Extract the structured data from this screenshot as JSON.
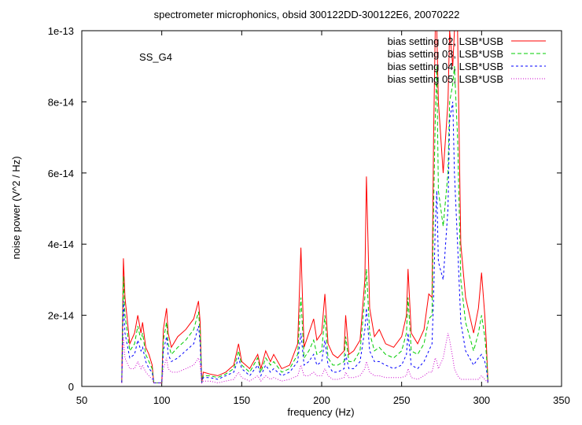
{
  "chart_data": {
    "type": "line",
    "title": "spectrometer microphonics, obsid 300122DD-300122E6, 20070222",
    "annotation": "SS_G4",
    "xlabel": "frequency (Hz)",
    "ylabel": "noise power (V^2 / Hz)",
    "xlim": [
      50,
      350
    ],
    "ylim": [
      0,
      1e-13
    ],
    "xticks": [
      50,
      100,
      150,
      200,
      250,
      300,
      350
    ],
    "xtick_labels": [
      "50",
      "100",
      "150",
      "200",
      "250",
      "300",
      "350"
    ],
    "yticks": [
      0,
      2e-14,
      4e-14,
      6e-14,
      8e-14,
      1e-13
    ],
    "ytick_labels": [
      "0",
      "2e-14",
      "4e-14",
      "6e-14",
      "8e-14",
      "1e-13"
    ],
    "grid": false,
    "legend_position": "top-right",
    "series": [
      {
        "name": "bias setting 02, LSB*USB",
        "color": "#ff0000",
        "dash": "solid",
        "x": [
          75,
          76,
          77,
          80,
          83,
          85,
          87,
          88,
          90,
          92,
          94,
          95,
          100,
          101,
          103,
          104,
          106,
          110,
          115,
          120,
          123,
          124,
          125,
          126,
          130,
          135,
          140,
          145,
          148,
          150,
          155,
          160,
          162,
          165,
          168,
          170,
          175,
          180,
          185,
          187,
          189,
          192,
          195,
          197,
          200,
          202,
          204,
          207,
          210,
          214,
          215,
          217,
          220,
          224,
          227,
          228,
          230,
          233,
          236,
          240,
          245,
          250,
          253,
          254,
          256,
          260,
          264,
          267,
          269,
          270,
          271,
          272,
          273,
          276,
          279,
          280,
          282,
          283,
          285,
          287,
          290,
          295,
          298,
          300,
          302,
          303,
          304
        ],
        "y": [
          1e-15,
          3.6e-14,
          2.5e-14,
          1.2e-14,
          1.5e-14,
          2e-14,
          1.5e-14,
          1.8e-14,
          1.1e-14,
          9e-15,
          6e-15,
          1e-15,
          1e-15,
          1.6e-14,
          2.2e-14,
          1.5e-14,
          1.1e-14,
          1.4e-14,
          1.6e-14,
          1.9e-14,
          2.4e-14,
          1.8e-14,
          1e-15,
          4e-15,
          3.5e-15,
          3e-15,
          4e-15,
          6e-15,
          1.2e-14,
          7e-15,
          5e-15,
          9e-15,
          5e-15,
          1e-14,
          7e-15,
          9e-15,
          5e-15,
          6e-15,
          1.2e-14,
          3.9e-14,
          1.1e-14,
          1.5e-14,
          1.9e-14,
          1.3e-14,
          1.5e-14,
          2.6e-14,
          1.2e-14,
          9e-15,
          8e-15,
          1e-14,
          2e-14,
          9e-15,
          1e-14,
          1.3e-14,
          3e-14,
          5.9e-14,
          2.2e-14,
          1.4e-14,
          1.6e-14,
          1.2e-14,
          1.1e-14,
          1.4e-14,
          2e-14,
          3.3e-14,
          1.5e-14,
          1.2e-14,
          1.6e-14,
          2.6e-14,
          2.5e-14,
          7e-14,
          1e-13,
          1e-13,
          8e-14,
          6e-14,
          8e-14,
          1e-13,
          9e-14,
          1e-13,
          1e-13,
          4e-14,
          2.5e-14,
          1.5e-14,
          2.2e-14,
          3.2e-14,
          2e-14,
          1.2e-14,
          1e-15
        ]
      },
      {
        "name": "bias setting 03, LSB*USB",
        "color": "#00cc00",
        "dash": "5,3",
        "x": [
          75,
          76,
          77,
          80,
          83,
          85,
          87,
          88,
          90,
          92,
          94,
          95,
          100,
          101,
          103,
          104,
          106,
          110,
          115,
          120,
          123,
          124,
          125,
          126,
          130,
          135,
          140,
          145,
          148,
          150,
          155,
          160,
          162,
          165,
          168,
          170,
          175,
          180,
          185,
          187,
          189,
          192,
          195,
          197,
          200,
          202,
          204,
          207,
          210,
          214,
          215,
          217,
          220,
          224,
          227,
          228,
          230,
          233,
          236,
          240,
          245,
          250,
          253,
          254,
          256,
          260,
          264,
          267,
          269,
          270,
          271,
          272,
          273,
          276,
          279,
          280,
          282,
          283,
          285,
          287,
          290,
          295,
          298,
          300,
          302,
          303,
          304
        ],
        "y": [
          1e-15,
          3.1e-14,
          2e-14,
          1e-14,
          1.2e-14,
          1.7e-14,
          1.3e-14,
          1.5e-14,
          9e-15,
          7e-15,
          5e-15,
          1e-15,
          1e-15,
          1.3e-14,
          1.8e-14,
          1.2e-14,
          9e-15,
          1.1e-14,
          1.3e-14,
          1.6e-14,
          2.1e-14,
          1.5e-14,
          1e-15,
          3e-15,
          3e-15,
          2.5e-15,
          3.5e-15,
          5e-15,
          1e-14,
          6e-15,
          4e-15,
          8e-15,
          4e-15,
          8e-15,
          6e-15,
          7e-15,
          4e-15,
          5e-15,
          9e-15,
          2.5e-14,
          8e-15,
          1e-14,
          1.3e-14,
          9e-15,
          1e-14,
          2e-14,
          8e-15,
          6e-15,
          6e-15,
          7e-15,
          1.4e-14,
          7e-15,
          7e-15,
          1e-14,
          2.5e-14,
          3.3e-14,
          1.5e-14,
          1e-14,
          1.1e-14,
          9e-15,
          8e-15,
          1e-14,
          1.5e-14,
          2.5e-14,
          1e-14,
          9e-15,
          1.2e-14,
          1.9e-14,
          2e-14,
          5e-14,
          7.5e-14,
          9e-14,
          5.5e-14,
          4.5e-14,
          6e-14,
          8e-14,
          8.5e-14,
          9e-14,
          7e-14,
          3e-14,
          1.8e-14,
          1e-14,
          1.5e-14,
          2e-14,
          1.4e-14,
          9e-15,
          1e-15
        ]
      },
      {
        "name": "bias setting 04, LSB*USB",
        "color": "#0000ff",
        "dash": "3,3",
        "x": [
          75,
          76,
          77,
          80,
          83,
          85,
          87,
          88,
          90,
          92,
          94,
          95,
          100,
          101,
          103,
          104,
          106,
          110,
          115,
          120,
          123,
          124,
          125,
          126,
          130,
          135,
          140,
          145,
          148,
          150,
          155,
          160,
          162,
          165,
          168,
          170,
          175,
          180,
          185,
          187,
          189,
          192,
          195,
          197,
          200,
          202,
          204,
          207,
          210,
          214,
          215,
          217,
          220,
          224,
          227,
          228,
          230,
          233,
          236,
          240,
          245,
          250,
          253,
          254,
          256,
          260,
          264,
          267,
          269,
          270,
          271,
          272,
          273,
          276,
          279,
          280,
          282,
          283,
          285,
          287,
          290,
          295,
          298,
          300,
          302,
          303,
          304
        ],
        "y": [
          1e-15,
          2.4e-14,
          1.5e-14,
          8e-15,
          9e-15,
          1.3e-14,
          1e-14,
          1.1e-14,
          7e-15,
          5e-15,
          4e-15,
          1e-15,
          1e-15,
          1e-14,
          1.4e-14,
          9e-15,
          7e-15,
          8e-15,
          1e-14,
          1.2e-14,
          1.7e-14,
          1.2e-14,
          1e-15,
          2.5e-15,
          2.5e-15,
          2e-15,
          3e-15,
          4e-15,
          8e-15,
          5e-15,
          3e-15,
          6e-15,
          3e-15,
          6e-15,
          4e-15,
          5e-15,
          3e-15,
          4e-15,
          7e-15,
          1.5e-14,
          6e-15,
          7e-15,
          9e-15,
          6e-15,
          7e-15,
          1.3e-14,
          6e-15,
          4e-15,
          4e-15,
          5e-15,
          9e-15,
          5e-15,
          5e-15,
          7e-15,
          1.6e-14,
          2.2e-14,
          1e-14,
          7e-15,
          7e-15,
          6e-15,
          5e-15,
          6e-15,
          9e-15,
          1.5e-14,
          6e-15,
          5e-15,
          7e-15,
          1e-14,
          1.2e-14,
          2.5e-14,
          4.5e-14,
          5.5e-14,
          3.5e-14,
          3e-14,
          5e-14,
          7.5e-14,
          8e-14,
          6e-14,
          4e-14,
          1.8e-14,
          1e-14,
          6e-15,
          8e-15,
          9e-15,
          7e-15,
          5e-15,
          1e-15
        ]
      },
      {
        "name": "bias setting 05, LSB*USB",
        "color": "#cc00cc",
        "dash": "1,2",
        "x": [
          75,
          76,
          77,
          80,
          83,
          85,
          87,
          88,
          90,
          92,
          94,
          95,
          100,
          101,
          103,
          104,
          106,
          110,
          115,
          120,
          123,
          124,
          125,
          126,
          130,
          135,
          140,
          145,
          148,
          150,
          155,
          160,
          162,
          165,
          168,
          170,
          175,
          180,
          185,
          187,
          189,
          192,
          195,
          197,
          200,
          202,
          204,
          207,
          210,
          214,
          215,
          217,
          220,
          224,
          227,
          228,
          230,
          233,
          236,
          240,
          245,
          250,
          253,
          254,
          256,
          260,
          264,
          267,
          269,
          270,
          271,
          272,
          273,
          276,
          279,
          280,
          282,
          283,
          285,
          287,
          290,
          295,
          298,
          300,
          302,
          303,
          304
        ],
        "y": [
          1e-15,
          1.4e-14,
          8e-15,
          5e-15,
          5e-15,
          7e-15,
          5e-15,
          6e-15,
          4e-15,
          3e-15,
          2e-15,
          1e-15,
          1e-15,
          5e-15,
          8e-15,
          5e-15,
          4e-15,
          4e-15,
          5e-15,
          6e-15,
          8e-15,
          6e-15,
          1e-15,
          1.5e-15,
          1.5e-15,
          1e-15,
          1.5e-15,
          2e-15,
          4e-15,
          2.5e-15,
          1.5e-15,
          3e-15,
          1.5e-15,
          3e-15,
          2e-15,
          2.5e-15,
          1.5e-15,
          2e-15,
          3e-15,
          6e-15,
          3e-15,
          3e-15,
          4e-15,
          3e-15,
          3e-15,
          5e-15,
          3e-15,
          2e-15,
          2e-15,
          2.5e-15,
          4e-15,
          2.5e-15,
          2.5e-15,
          3e-15,
          5e-15,
          7e-15,
          4e-15,
          3e-15,
          3e-15,
          2.5e-15,
          2.5e-15,
          2.5e-15,
          3e-15,
          5e-15,
          2.5e-15,
          2e-15,
          3e-15,
          4e-15,
          4e-15,
          6e-15,
          8e-15,
          7e-15,
          5e-15,
          8e-15,
          1.5e-14,
          1.3e-14,
          8e-15,
          5e-15,
          3e-15,
          2e-15,
          2e-15,
          2e-15,
          2e-15,
          3e-15,
          2e-15,
          1.5e-15,
          1e-15
        ]
      }
    ]
  }
}
